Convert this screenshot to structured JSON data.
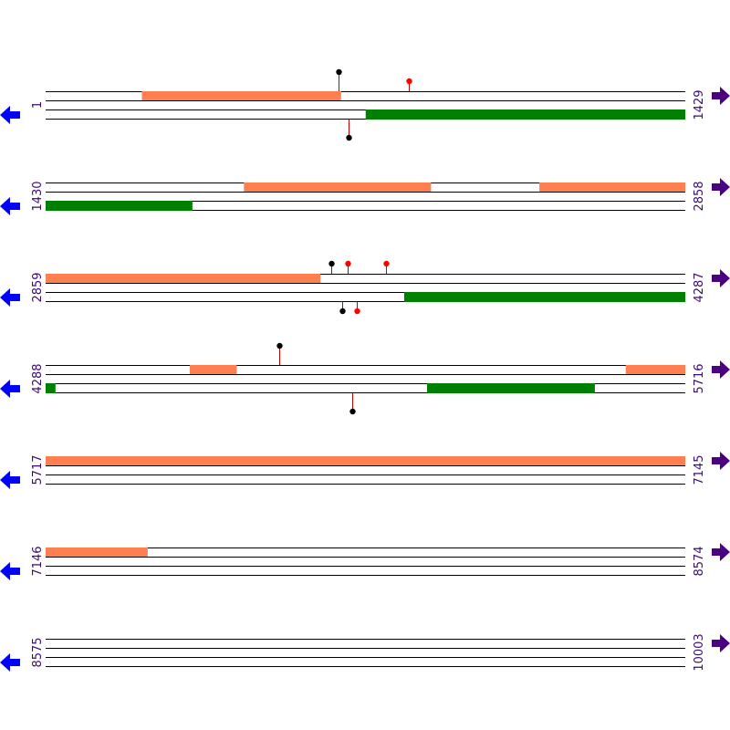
{
  "colors": {
    "forward_feature": "#ff7f50",
    "reverse_feature": "#008000",
    "strand_line": "#000000",
    "left_arrow": "#0000ff",
    "right_arrow": "#4b0082",
    "label": "#3d0a6e",
    "marker_stem": "#cc0000",
    "marker_black": "#000000",
    "marker_red": "#ff0000"
  },
  "icons": {
    "left": "left-arrow-icon",
    "right": "right-arrow-icon"
  },
  "rows": [
    {
      "start": 1,
      "end": 1429,
      "start_label": "1",
      "end_label": "1429",
      "forward": [
        [
          216,
          660
        ]
      ],
      "reverse": [
        [
          716,
          1429
        ]
      ],
      "markers_top": [
        {
          "pos": 655,
          "color": "black",
          "level": 2
        },
        {
          "pos": 812,
          "color": "red",
          "level": 1
        }
      ],
      "markers_bottom": [
        {
          "pos": 678,
          "color": "black",
          "level": 2
        }
      ]
    },
    {
      "start": 1430,
      "end": 2858,
      "start_label": "1430",
      "end_label": "2858",
      "forward": [
        [
          1873,
          2290
        ],
        [
          2533,
          2858
        ]
      ],
      "reverse": [
        [
          1430,
          1757
        ]
      ],
      "markers_top": [],
      "markers_bottom": []
    },
    {
      "start": 2859,
      "end": 4287,
      "start_label": "2859",
      "end_label": "4287",
      "forward": [
        [
          2859,
          3472
        ]
      ],
      "reverse": [
        [
          3660,
          4287
        ]
      ],
      "markers_top": [
        {
          "pos": 3497,
          "color": "black",
          "level": 1
        },
        {
          "pos": 3534,
          "color": "red",
          "level": 1
        },
        {
          "pos": 3619,
          "color": "red",
          "level": 1
        }
      ],
      "markers_bottom": [
        {
          "pos": 3522,
          "color": "black",
          "level": 1
        },
        {
          "pos": 3554,
          "color": "red",
          "level": 1
        }
      ]
    },
    {
      "start": 4288,
      "end": 5716,
      "start_label": "4288",
      "end_label": "5716",
      "forward": [
        [
          4610,
          4714
        ],
        [
          5584,
          5716
        ]
      ],
      "reverse": [
        [
          4288,
          4309
        ],
        [
          5140,
          5514
        ]
      ],
      "markers_top": [
        {
          "pos": 4810,
          "color": "black",
          "level": 2
        }
      ],
      "markers_bottom": [
        {
          "pos": 4973,
          "color": "black",
          "level": 2
        }
      ]
    },
    {
      "start": 5717,
      "end": 7145,
      "start_label": "5717",
      "end_label": "7145",
      "forward": [
        [
          5717,
          7145
        ]
      ],
      "reverse": [],
      "markers_top": [],
      "markers_bottom": []
    },
    {
      "start": 7146,
      "end": 8574,
      "start_label": "7146",
      "end_label": "8574",
      "forward": [
        [
          7146,
          7373
        ]
      ],
      "reverse": [],
      "markers_top": [],
      "markers_bottom": []
    },
    {
      "start": 8575,
      "end": 10003,
      "start_label": "8575",
      "end_label": "10003",
      "forward": [],
      "reverse": [],
      "markers_top": [],
      "markers_bottom": []
    }
  ]
}
